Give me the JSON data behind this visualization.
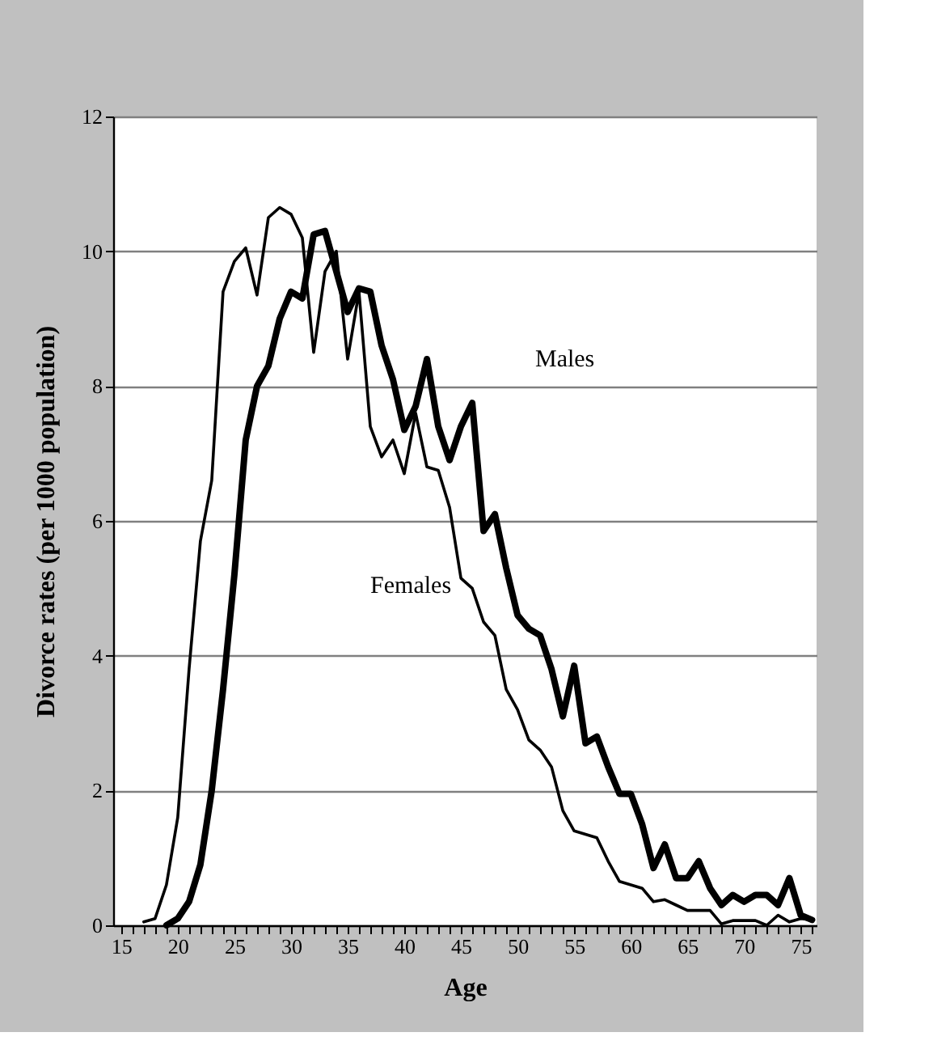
{
  "chart_data": {
    "type": "line",
    "xlabel": "Age",
    "ylabel": "Divorce rates (per 1000 population)",
    "xlim": [
      14.3,
      76.4
    ],
    "ylim": [
      0,
      12
    ],
    "yticks": [
      0,
      2,
      4,
      6,
      8,
      10,
      12
    ],
    "xticks": [
      15,
      {
        "value": 16,
        "label": null
      },
      {
        "value": 17,
        "label": null
      },
      {
        "value": 18,
        "label": null
      },
      {
        "value": 19,
        "label": null
      },
      20,
      {
        "value": 21,
        "label": null
      },
      {
        "value": 22,
        "label": null
      },
      {
        "value": 23,
        "label": null
      },
      {
        "value": 24,
        "label": null
      },
      25,
      {
        "value": 26,
        "label": null
      },
      {
        "value": 27,
        "label": null
      },
      {
        "value": 28,
        "label": null
      },
      {
        "value": 29,
        "label": null
      },
      30,
      {
        "value": 31,
        "label": null
      },
      {
        "value": 32,
        "label": null
      },
      {
        "value": 33,
        "label": null
      },
      {
        "value": 34,
        "label": null
      },
      35,
      {
        "value": 36,
        "label": null
      },
      {
        "value": 37,
        "label": null
      },
      {
        "value": 38,
        "label": null
      },
      {
        "value": 39,
        "label": null
      },
      40,
      {
        "value": 41,
        "label": null
      },
      {
        "value": 42,
        "label": null
      },
      {
        "value": 43,
        "label": null
      },
      {
        "value": 44,
        "label": null
      },
      45,
      {
        "value": 46,
        "label": null
      },
      {
        "value": 47,
        "label": null
      },
      {
        "value": 48,
        "label": null
      },
      {
        "value": 49,
        "label": null
      },
      50,
      {
        "value": 51,
        "label": null
      },
      {
        "value": 52,
        "label": null
      },
      {
        "value": 53,
        "label": null
      },
      {
        "value": 54,
        "label": null
      },
      55,
      {
        "value": 56,
        "label": null
      },
      {
        "value": 57,
        "label": null
      },
      {
        "value": 58,
        "label": null
      },
      {
        "value": 59,
        "label": null
      },
      60,
      {
        "value": 61,
        "label": null
      },
      {
        "value": 62,
        "label": null
      },
      {
        "value": 63,
        "label": null
      },
      {
        "value": 64,
        "label": null
      },
      65,
      {
        "value": 66,
        "label": null
      },
      {
        "value": 67,
        "label": null
      },
      {
        "value": 68,
        "label": null
      },
      {
        "value": 69,
        "label": null
      },
      70,
      {
        "value": 71,
        "label": null
      },
      {
        "value": 72,
        "label": null
      },
      {
        "value": 73,
        "label": null
      },
      {
        "value": 74,
        "label": null
      },
      75,
      {
        "value": 76,
        "label": null
      }
    ],
    "grid": "y",
    "legend": false,
    "marker": "none",
    "line_style": "solid",
    "series": [
      {
        "name": "Males",
        "color": "#000000",
        "x": [
          19,
          20,
          21,
          22,
          23,
          24,
          25,
          26,
          27,
          28,
          29,
          30,
          31,
          32,
          33,
          34,
          35,
          36,
          37,
          38,
          39,
          40,
          41,
          42,
          43,
          44,
          45,
          46,
          47,
          48,
          49,
          50,
          51,
          52,
          53,
          54,
          55,
          56,
          57,
          58,
          59,
          60,
          61,
          62,
          63,
          64,
          65,
          66,
          67,
          68,
          69,
          70,
          71,
          72,
          73,
          74,
          75,
          76
        ],
        "values": [
          0.0,
          0.1,
          0.35,
          0.9,
          2.0,
          3.5,
          5.2,
          7.2,
          8.0,
          8.3,
          9.0,
          9.4,
          9.3,
          10.25,
          10.3,
          9.7,
          9.1,
          9.45,
          9.4,
          8.6,
          8.1,
          7.35,
          7.7,
          8.4,
          7.4,
          6.9,
          7.4,
          7.75,
          5.85,
          6.1,
          5.3,
          4.6,
          4.4,
          4.3,
          3.8,
          3.1,
          3.85,
          2.7,
          2.8,
          2.35,
          1.95,
          1.95,
          1.5,
          0.85,
          1.2,
          0.7,
          0.7,
          0.95,
          0.55,
          0.3,
          0.45,
          0.35,
          0.45,
          0.45,
          0.3,
          0.7,
          0.15,
          0.08
        ]
      },
      {
        "name": "Females",
        "color": "#000000",
        "x": [
          17,
          18,
          19,
          20,
          21,
          22,
          23,
          24,
          25,
          26,
          27,
          28,
          29,
          30,
          31,
          32,
          33,
          34,
          35,
          36,
          37,
          38,
          39,
          40,
          41,
          42,
          43,
          44,
          45,
          46,
          47,
          48,
          49,
          50,
          51,
          52,
          53,
          54,
          55,
          56,
          57,
          58,
          59,
          60,
          61,
          62,
          63,
          64,
          65,
          66,
          67,
          68,
          69,
          70,
          71,
          72,
          73,
          74,
          75,
          76
        ],
        "values": [
          0.05,
          0.1,
          0.6,
          1.6,
          3.8,
          5.7,
          6.6,
          9.4,
          9.85,
          10.05,
          9.35,
          10.5,
          10.65,
          10.55,
          10.2,
          8.5,
          9.7,
          10.0,
          8.4,
          9.4,
          7.4,
          6.95,
          7.2,
          6.7,
          7.6,
          6.8,
          6.75,
          6.2,
          5.15,
          5.0,
          4.5,
          4.3,
          3.5,
          3.2,
          2.75,
          2.6,
          2.35,
          1.7,
          1.4,
          1.35,
          1.3,
          0.95,
          0.65,
          0.6,
          0.55,
          0.35,
          0.38,
          0.3,
          0.22,
          0.22,
          0.22,
          0.02,
          0.07,
          0.07,
          0.07,
          0.0,
          0.15,
          0.05,
          0.1,
          0.08
        ]
      }
    ]
  }
}
